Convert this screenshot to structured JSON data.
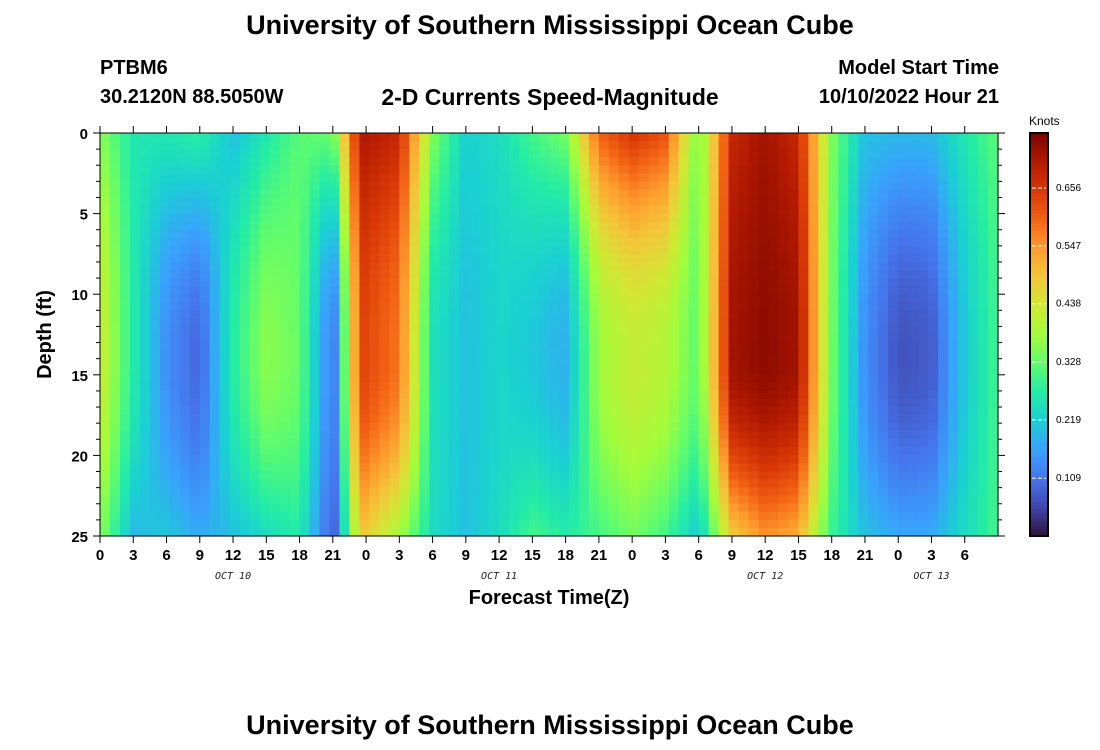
{
  "header": {
    "title": "University of Southern Mississippi Ocean Cube",
    "station": "PTBM6",
    "coords": "30.2120N  88.5050W",
    "subtitle": "2-D Currents Speed-Magnitude",
    "model_start_label": "Model Start Time",
    "model_start_value": "10/10/2022 Hour 21"
  },
  "footer": {
    "title": "University of Southern Mississippi Ocean Cube"
  },
  "colorbar": {
    "label": "Knots",
    "ticks": [
      0.109,
      0.219,
      0.328,
      0.438,
      0.547,
      0.656
    ],
    "range": [
      0.0,
      0.76
    ],
    "colors": [
      "#30123b",
      "#4145ab",
      "#4675ed",
      "#39a2fc",
      "#1bcfd4",
      "#24eca6",
      "#61fc6c",
      "#a4fc3b",
      "#d1e834",
      "#f3c63a",
      "#fe9b2d",
      "#f36315",
      "#d93806",
      "#b11901",
      "#7a0402"
    ]
  },
  "chart_data": {
    "type": "heatmap",
    "title": "2-D Currents Speed-Magnitude",
    "xlabel": "Forecast Time(Z)",
    "ylabel": "Depth (ft)",
    "units": "Knots",
    "x_range_hours": [
      0,
      81
    ],
    "y_range_ft": [
      0,
      25
    ],
    "x_tick_labels": [
      "0",
      "3",
      "6",
      "9",
      "12",
      "15",
      "18",
      "21",
      "0",
      "3",
      "6",
      "9",
      "12",
      "15",
      "18",
      "21",
      "0",
      "3",
      "6",
      "9",
      "12",
      "15",
      "18",
      "21",
      "0",
      "3",
      "6"
    ],
    "y_tick_labels": [
      "0",
      "5",
      "10",
      "15",
      "20",
      "25"
    ],
    "y_tick_values": [
      0,
      5,
      10,
      15,
      20,
      25
    ],
    "date_labels": [
      {
        "label": "OCT 10",
        "hour": 12
      },
      {
        "label": "OCT 11",
        "hour": 36
      },
      {
        "label": "OCT 12",
        "hour": 60
      },
      {
        "label": "OCT 13",
        "hour": 75
      }
    ],
    "surface_speed_profile": [
      {
        "hour": 0,
        "surface": 0.36,
        "bottom": 0.36,
        "mid": 0.43
      },
      {
        "hour": 3,
        "surface": 0.26,
        "bottom": 0.19,
        "mid": 0.27
      },
      {
        "hour": 6,
        "surface": 0.26,
        "bottom": 0.21,
        "mid": 0.14
      },
      {
        "hour": 9,
        "surface": 0.28,
        "bottom": 0.17,
        "mid": 0.09
      },
      {
        "hour": 12,
        "surface": 0.2,
        "bottom": 0.2,
        "mid": 0.27
      },
      {
        "hour": 15,
        "surface": 0.26,
        "bottom": 0.24,
        "mid": 0.36
      },
      {
        "hour": 18,
        "surface": 0.32,
        "bottom": 0.27,
        "mid": 0.33
      },
      {
        "hour": 21,
        "surface": 0.33,
        "bottom": 0.07,
        "mid": 0.1
      },
      {
        "hour": 23.5,
        "surface": 0.71,
        "bottom": 0.49,
        "mid": 0.64
      },
      {
        "hour": 27,
        "surface": 0.68,
        "bottom": 0.38,
        "mid": 0.58
      },
      {
        "hour": 30,
        "surface": 0.35,
        "bottom": 0.24,
        "mid": 0.25
      },
      {
        "hour": 33,
        "surface": 0.22,
        "bottom": 0.2,
        "mid": 0.2
      },
      {
        "hour": 36,
        "surface": 0.24,
        "bottom": 0.24,
        "mid": 0.23
      },
      {
        "hour": 39,
        "surface": 0.3,
        "bottom": 0.3,
        "mid": 0.21
      },
      {
        "hour": 42,
        "surface": 0.34,
        "bottom": 0.27,
        "mid": 0.18
      },
      {
        "hour": 45,
        "surface": 0.6,
        "bottom": 0.3,
        "mid": 0.38
      },
      {
        "hour": 48,
        "surface": 0.66,
        "bottom": 0.34,
        "mid": 0.42
      },
      {
        "hour": 51,
        "surface": 0.62,
        "bottom": 0.3,
        "mid": 0.4
      },
      {
        "hour": 54,
        "surface": 0.33,
        "bottom": 0.21,
        "mid": 0.32
      },
      {
        "hour": 57,
        "surface": 0.68,
        "bottom": 0.48,
        "mid": 0.72
      },
      {
        "hour": 60,
        "surface": 0.72,
        "bottom": 0.55,
        "mid": 0.74
      },
      {
        "hour": 63,
        "surface": 0.68,
        "bottom": 0.52,
        "mid": 0.72
      },
      {
        "hour": 66,
        "surface": 0.35,
        "bottom": 0.29,
        "mid": 0.34
      },
      {
        "hour": 69,
        "surface": 0.2,
        "bottom": 0.2,
        "mid": 0.14
      },
      {
        "hour": 72,
        "surface": 0.19,
        "bottom": 0.17,
        "mid": 0.07
      },
      {
        "hour": 75,
        "surface": 0.19,
        "bottom": 0.17,
        "mid": 0.08
      },
      {
        "hour": 78,
        "surface": 0.26,
        "bottom": 0.24,
        "mid": 0.21
      },
      {
        "hour": 81,
        "surface": 0.32,
        "bottom": 0.3,
        "mid": 0.3
      }
    ]
  }
}
